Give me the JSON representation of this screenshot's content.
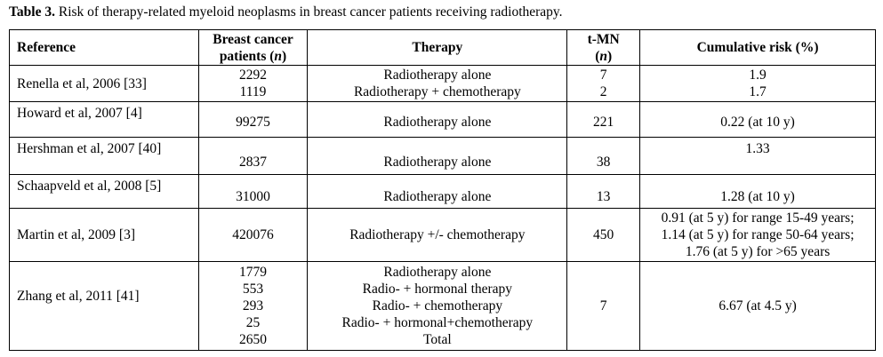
{
  "caption": {
    "label": "Table 3.",
    "text": " Risk of therapy-related myeloid neoplasms in breast cancer patients receiving radiotherapy."
  },
  "headers": {
    "reference": "Reference",
    "patients_line1": "Breast cancer",
    "patients_line2": "patients (",
    "patients_n": "n",
    "patients_close": ")",
    "therapy": "Therapy",
    "tmn_line1": "t-MN",
    "tmn_open": "(",
    "tmn_n": "n",
    "tmn_close": ")",
    "risk": "Cumulative risk (%)"
  },
  "rows": [
    {
      "reference": "Renella et al, 2006 [33]",
      "patients": [
        "2292",
        "1119"
      ],
      "therapy": [
        "Radiotherapy alone",
        "Radiotherapy + chemotherapy"
      ],
      "tmn": [
        "7",
        "2"
      ],
      "risk": [
        "1.9",
        "1.7"
      ]
    },
    {
      "reference": "Howard et al, 2007 [4]",
      "patients": [
        "99275"
      ],
      "therapy": [
        "Radiotherapy alone"
      ],
      "tmn": [
        "221"
      ],
      "risk": [
        "0.22 (at 10 y)"
      ]
    },
    {
      "reference": "Hershman et al, 2007 [40]",
      "patients": [
        "2837"
      ],
      "therapy": [
        "Radiotherapy alone"
      ],
      "tmn": [
        "38"
      ],
      "risk": [
        "1.33"
      ]
    },
    {
      "reference": "Schaapveld et al, 2008 [5]",
      "patients": [
        "31000"
      ],
      "therapy": [
        "Radiotherapy alone"
      ],
      "tmn": [
        "13"
      ],
      "risk": [
        "1.28 (at 10 y)"
      ]
    },
    {
      "reference": "Martin et al, 2009 [3]",
      "patients": [
        "420076"
      ],
      "therapy": [
        "Radiotherapy +/- chemotherapy"
      ],
      "tmn": [
        "450"
      ],
      "risk": [
        "0.91 (at 5 y) for range 15-49 years;",
        "1.14 (at 5 y) for range 50-64 years;",
        "1.76 (at 5 y) for >65 years"
      ]
    },
    {
      "reference": "Zhang et al, 2011 [41]",
      "patients": [
        "1779",
        "553",
        "293",
        "25",
        "2650"
      ],
      "therapy": [
        "Radiotherapy alone",
        "Radio- + hormonal therapy",
        "Radio- + chemotherapy",
        "Radio- + hormonal+chemotherapy",
        "Total"
      ],
      "tmn": [
        "7"
      ],
      "risk": [
        "6.67 (at 4.5 y)"
      ]
    }
  ]
}
